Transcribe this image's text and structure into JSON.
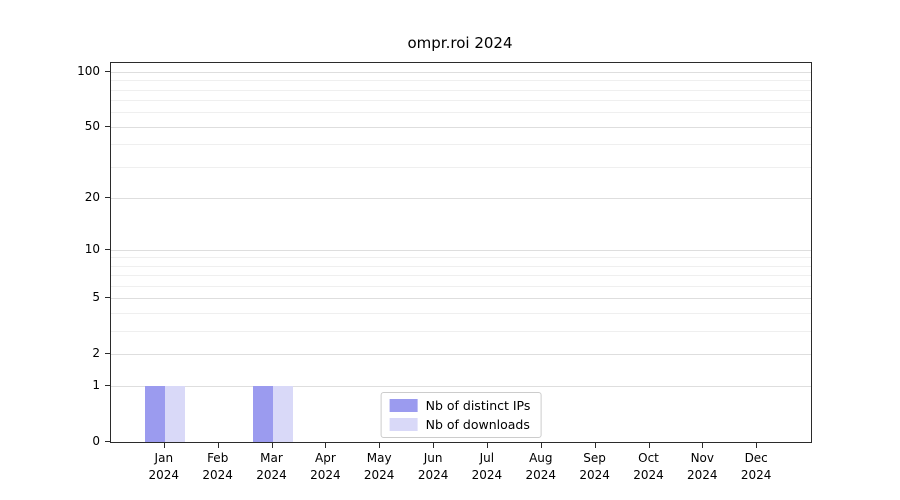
{
  "chart_data": {
    "type": "bar",
    "title": "ompr.roi 2024",
    "categories": [
      "Jan",
      "Feb",
      "Mar",
      "Apr",
      "May",
      "Jun",
      "Jul",
      "Aug",
      "Sep",
      "Oct",
      "Nov",
      "Dec"
    ],
    "category_year": "2024",
    "series": [
      {
        "name": "Nb of distinct IPs",
        "color": "#9b9bef",
        "values": [
          1,
          0,
          1,
          0,
          0,
          0,
          0,
          0,
          0,
          0,
          0,
          0
        ]
      },
      {
        "name": "Nb of downloads",
        "color": "#d9d9f8",
        "values": [
          1,
          0,
          1,
          0,
          0,
          0,
          0,
          0,
          0,
          0,
          0,
          0
        ]
      }
    ],
    "yscale": "log1p",
    "ylim": [
      0,
      112
    ],
    "yticks": [
      0,
      1,
      2,
      5,
      10,
      20,
      50,
      100
    ],
    "minor_yticks": [
      3,
      4,
      6,
      7,
      8,
      9,
      30,
      40,
      60,
      70,
      80,
      90
    ],
    "grid": true,
    "legend_position": "lower center"
  }
}
